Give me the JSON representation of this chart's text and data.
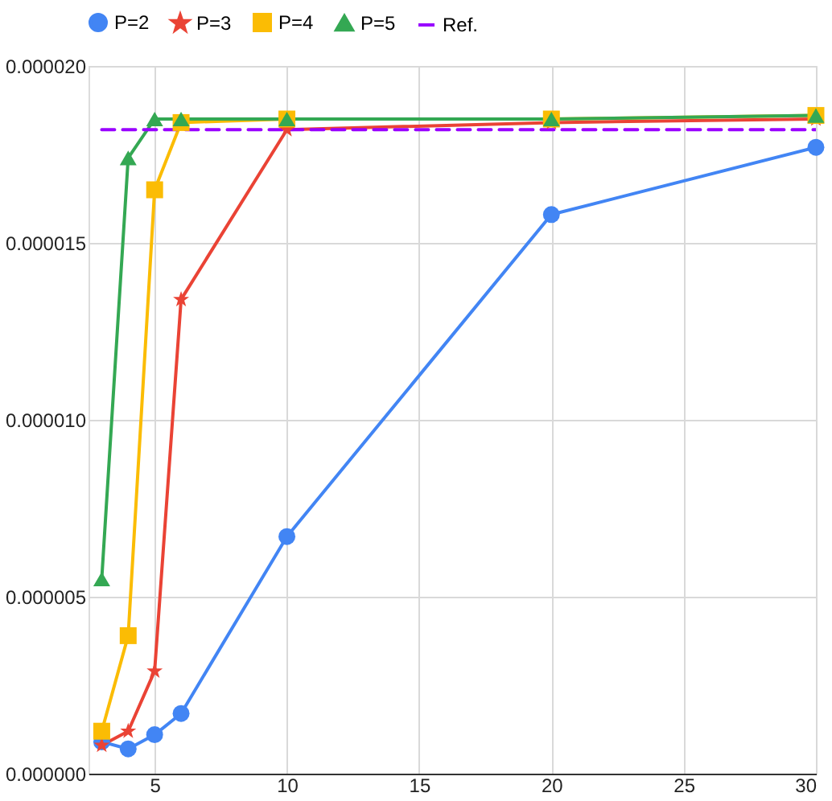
{
  "chart_data": {
    "type": "line",
    "x": [
      3,
      4,
      5,
      6,
      10,
      20,
      30
    ],
    "xlim": [
      2.5,
      30
    ],
    "xticks": [
      5,
      10,
      15,
      20,
      25,
      30
    ],
    "ylim": [
      0,
      2e-05
    ],
    "yticks": [
      {
        "value": 0,
        "label": "0.000000"
      },
      {
        "value": 5e-06,
        "label": "0.000005"
      },
      {
        "value": 1e-05,
        "label": "0.000010"
      },
      {
        "value": 1.5e-05,
        "label": "0.000015"
      },
      {
        "value": 2e-05,
        "label": "0.000020"
      }
    ],
    "grid": true,
    "legend": "top",
    "series": [
      {
        "name": "P=2",
        "color": "#4285f4",
        "marker": "circle",
        "line_style": "solid",
        "values": [
          9e-07,
          7e-07,
          1.1e-06,
          1.7e-06,
          6.7e-06,
          1.58e-05,
          1.77e-05
        ]
      },
      {
        "name": "P=3",
        "color": "#ea4335",
        "marker": "star",
        "line_style": "solid",
        "values": [
          8e-07,
          1.2e-06,
          2.9e-06,
          1.34e-05,
          1.82e-05,
          1.84e-05,
          1.85e-05
        ]
      },
      {
        "name": "P=4",
        "color": "#fbbc04",
        "marker": "square",
        "line_style": "solid",
        "values": [
          1.2e-06,
          3.9e-06,
          1.65e-05,
          1.84e-05,
          1.85e-05,
          1.85e-05,
          1.86e-05
        ]
      },
      {
        "name": "P=5",
        "color": "#34a853",
        "marker": "triangle",
        "line_style": "solid",
        "values": [
          5.5e-06,
          1.74e-05,
          1.85e-05,
          1.85e-05,
          1.85e-05,
          1.85e-05,
          1.86e-05
        ]
      },
      {
        "name": "Ref.",
        "color": "#9900ff",
        "marker": "none",
        "line_style": "dashed",
        "values": [
          1.82e-05,
          1.82e-05,
          1.82e-05,
          1.82e-05,
          1.82e-05,
          1.82e-05,
          1.82e-05
        ]
      }
    ]
  }
}
